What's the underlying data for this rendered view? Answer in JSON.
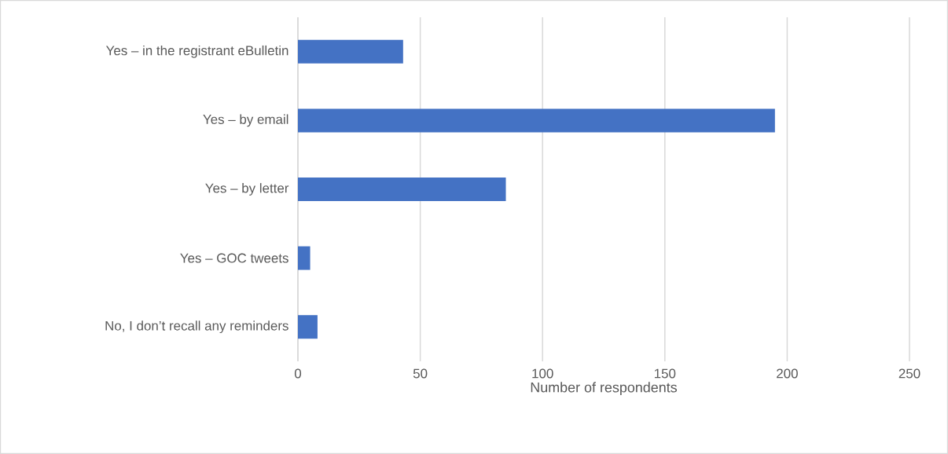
{
  "chart_data": {
    "type": "bar",
    "orientation": "horizontal",
    "xlabel": "Number of respondents",
    "categories": [
      "Yes – in the registrant eBulletin",
      "Yes – by email",
      "Yes – by letter",
      "Yes – GOC tweets",
      "No, I don’t recall any reminders"
    ],
    "values": [
      43,
      195,
      85,
      5,
      8
    ],
    "color": "#4472c4",
    "xlim": [
      0,
      250
    ],
    "xticks": [
      0,
      50,
      100,
      150,
      200,
      250
    ],
    "grid": "x"
  }
}
